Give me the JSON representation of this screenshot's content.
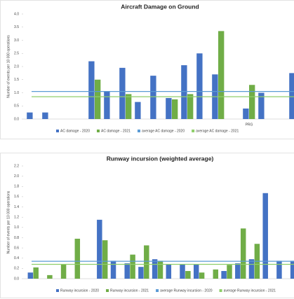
{
  "chart_data": [
    {
      "type": "bar",
      "title": "Aircraft Damage on Ground",
      "y_label": "Number of events per 10 000 operations",
      "categories": [
        null,
        null,
        null,
        null,
        null,
        null,
        null,
        null,
        null,
        null,
        null,
        null,
        null,
        null,
        "PRG",
        null,
        null,
        null
      ],
      "series": [
        {
          "name": "AC damage - 2020",
          "color": "#4472c4",
          "values": [
            0.25,
            0.25,
            null,
            null,
            2.2,
            1.05,
            1.95,
            0.65,
            1.65,
            0.8,
            2.05,
            2.5,
            1.7,
            null,
            0.4,
            1.0,
            null,
            1.75
          ]
        },
        {
          "name": "AC damage - 2021",
          "color": "#70ad47",
          "values": [
            null,
            null,
            null,
            null,
            1.5,
            null,
            0.95,
            null,
            null,
            0.75,
            0.95,
            null,
            3.35,
            null,
            1.3,
            null,
            null,
            null
          ]
        }
      ],
      "averages": [
        {
          "name": "average AC damage - 2020",
          "color": "#5b9bd5",
          "value": 1.05
        },
        {
          "name": "average AC damage - 2021",
          "color": "#8fce6a",
          "value": 0.85
        }
      ],
      "ylim": [
        0,
        4
      ],
      "yticks": [
        {
          "value": 0,
          "label": "0.0"
        },
        0.5,
        {
          "value": 1,
          "label": "1.0"
        },
        1.5,
        {
          "value": 2,
          "label": "2.0"
        },
        2.5,
        {
          "value": 3,
          "label": "3.0"
        },
        3.5,
        {
          "value": 4,
          "label": "4.0"
        }
      ]
    },
    {
      "type": "bar",
      "title": "Runway incursion (weighted average)",
      "y_label": "Number of events per 10 000 operations",
      "categories": [
        null,
        null,
        null,
        null,
        null,
        null,
        null,
        null,
        null,
        null,
        null,
        null,
        null,
        null,
        null,
        null,
        null,
        null,
        null,
        null
      ],
      "series": [
        {
          "name": "Runway incursion - 2020",
          "color": "#4472c4",
          "values": [
            0.12,
            null,
            null,
            null,
            null,
            1.15,
            0.35,
            0.3,
            0.23,
            0.38,
            0.28,
            0.28,
            0.28,
            null,
            0.15,
            0.3,
            0.38,
            1.67,
            0.35,
            0.35
          ]
        },
        {
          "name": "Runway incursion - 2021",
          "color": "#70ad47",
          "values": [
            0.22,
            0.07,
            0.28,
            0.78,
            null,
            0.75,
            null,
            0.47,
            0.65,
            0.35,
            null,
            0.15,
            0.12,
            0.18,
            0.27,
            0.98,
            0.68,
            null,
            null,
            null
          ]
        }
      ],
      "averages": [
        {
          "name": "average Runway incursion - 2020",
          "color": "#5b9bd5",
          "value": 0.34
        },
        {
          "name": "average Runway incursion - 2021",
          "color": "#8fce6a",
          "value": 0.28
        }
      ],
      "ylim": [
        0,
        2.2
      ],
      "yticks": [
        {
          "value": 0,
          "label": "0.0"
        },
        0.2,
        0.4,
        0.6,
        0.8,
        {
          "value": 1,
          "label": "1.0"
        },
        1.2,
        1.4,
        1.6,
        1.8,
        {
          "value": 2,
          "label": "2.0"
        },
        2.2
      ]
    }
  ]
}
